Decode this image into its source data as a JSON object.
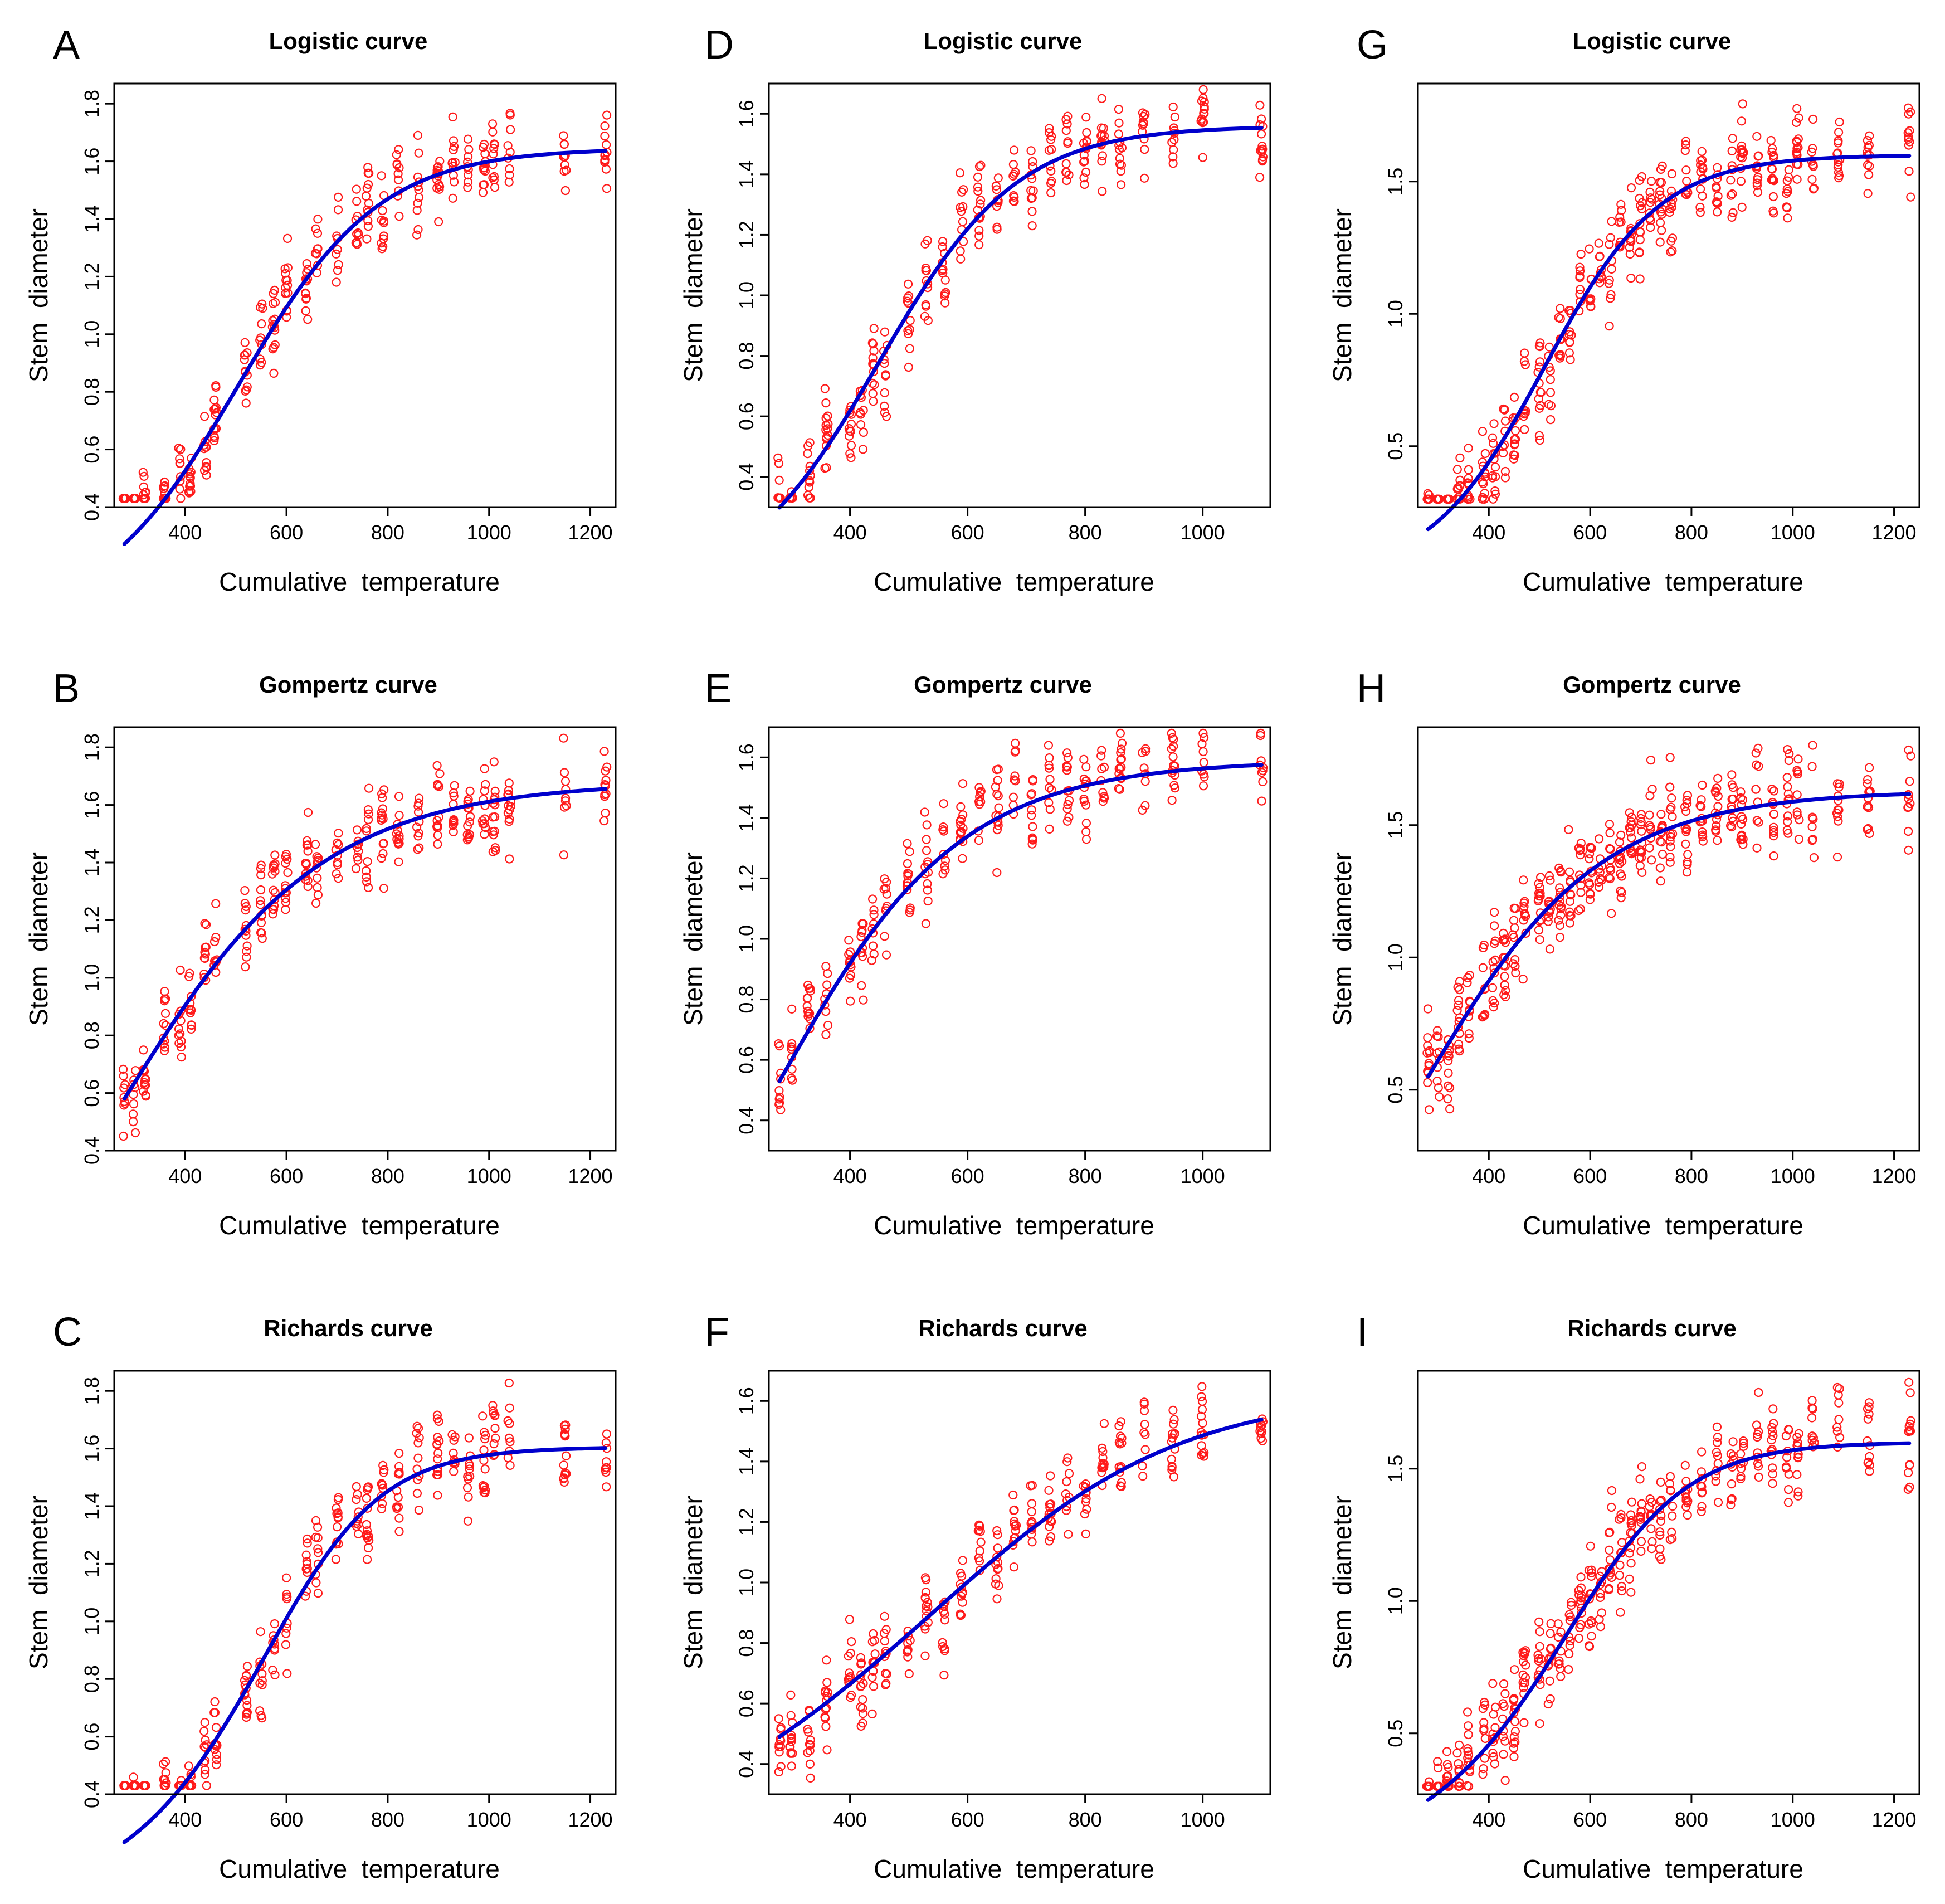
{
  "figure": {
    "colors": {
      "points": "#ff1a1a",
      "fit_line": "#0000cc",
      "frame": "#000000"
    }
  },
  "chart_data": [
    {
      "panel": "A",
      "type": "scatter",
      "title": "Logistic curve",
      "model": "logistic",
      "xlabel": "Cumulative  temperature",
      "ylabel": "Stem  diameter",
      "xlim": [
        260,
        1250
      ],
      "ylim": [
        0.4,
        1.87
      ],
      "xticks": [
        400,
        600,
        800,
        1000,
        1200
      ],
      "yticks": [
        0.4,
        0.6,
        0.8,
        1.0,
        1.2,
        1.4,
        1.6,
        1.8
      ],
      "ytick_format": 1,
      "x_levels": [
        280,
        300,
        320,
        360,
        390,
        410,
        440,
        460,
        520,
        550,
        575,
        600,
        640,
        660,
        700,
        740,
        760,
        790,
        820,
        860,
        900,
        930,
        960,
        990,
        1010,
        1040,
        1150,
        1230
      ],
      "fit": {
        "K": 1.645,
        "r": 0.0072,
        "x0": 428,
        "y0": 0.6,
        "x_from": 280,
        "x_to": 1230
      },
      "spread": 0.28
    },
    {
      "panel": "B",
      "type": "scatter",
      "title": "Gompertz curve",
      "model": "gompertz",
      "xlabel": "Cumulative  temperature",
      "ylabel": "Stem  diameter",
      "xlim": [
        260,
        1250
      ],
      "ylim": [
        0.4,
        1.87
      ],
      "xticks": [
        400,
        600,
        800,
        1000,
        1200
      ],
      "yticks": [
        0.4,
        0.6,
        0.8,
        1.0,
        1.2,
        1.4,
        1.6,
        1.8
      ],
      "ytick_format": 1,
      "x_levels": [
        280,
        300,
        320,
        360,
        390,
        410,
        440,
        460,
        520,
        550,
        575,
        600,
        640,
        660,
        700,
        740,
        760,
        790,
        820,
        860,
        900,
        930,
        960,
        990,
        1010,
        1040,
        1150,
        1230
      ],
      "fit": {
        "K": 1.68,
        "r": 0.0045,
        "x0": 280,
        "y0": 0.58,
        "x_from": 280,
        "x_to": 1230
      },
      "spread": 0.28
    },
    {
      "panel": "C",
      "type": "scatter",
      "title": "Richards curve",
      "model": "richards",
      "xlabel": "Cumulative  temperature",
      "ylabel": "Stem  diameter",
      "xlim": [
        260,
        1250
      ],
      "ylim": [
        0.4,
        1.87
      ],
      "xticks": [
        400,
        600,
        800,
        1000,
        1200
      ],
      "yticks": [
        0.4,
        0.6,
        0.8,
        1.0,
        1.2,
        1.4,
        1.6,
        1.8
      ],
      "ytick_format": 1,
      "x_levels": [
        280,
        300,
        320,
        360,
        390,
        410,
        440,
        460,
        520,
        550,
        575,
        600,
        640,
        660,
        700,
        740,
        760,
        790,
        820,
        860,
        900,
        930,
        960,
        990,
        1010,
        1040,
        1150,
        1230
      ],
      "fit": {
        "K": 1.605,
        "r": 0.0092,
        "x0": 482,
        "y0": 0.65,
        "x_from": 280,
        "x_to": 1230
      },
      "spread": 0.28
    },
    {
      "panel": "D",
      "type": "scatter",
      "title": "Logistic curve",
      "model": "logistic",
      "xlabel": "Cumulative  temperature",
      "ylabel": "Stem  diameter",
      "xlim": [
        262,
        1115
      ],
      "ylim": [
        0.3,
        1.7
      ],
      "xticks": [
        400,
        600,
        800,
        1000
      ],
      "yticks": [
        0.4,
        0.6,
        0.8,
        1.0,
        1.2,
        1.4,
        1.6
      ],
      "ytick_format": 1,
      "x_levels": [
        280,
        300,
        330,
        360,
        400,
        420,
        440,
        460,
        500,
        530,
        560,
        590,
        620,
        650,
        680,
        710,
        740,
        770,
        800,
        830,
        860,
        900,
        950,
        1000,
        1100
      ],
      "fit": {
        "K": 1.56,
        "r": 0.0085,
        "x0": 388,
        "y0": 0.58,
        "x_from": 280,
        "x_to": 1100
      },
      "spread": 0.26
    },
    {
      "panel": "E",
      "type": "scatter",
      "title": "Gompertz curve",
      "model": "gompertz",
      "xlabel": "Cumulative  temperature",
      "ylabel": "Stem  diameter",
      "xlim": [
        262,
        1115
      ],
      "ylim": [
        0.3,
        1.7
      ],
      "xticks": [
        400,
        600,
        800,
        1000
      ],
      "yticks": [
        0.4,
        0.6,
        0.8,
        1.0,
        1.2,
        1.4,
        1.6
      ],
      "ytick_format": 1,
      "x_levels": [
        280,
        300,
        330,
        360,
        400,
        420,
        440,
        460,
        500,
        530,
        560,
        590,
        620,
        650,
        680,
        710,
        740,
        770,
        800,
        830,
        860,
        900,
        950,
        1000,
        1100
      ],
      "fit": {
        "K": 1.59,
        "r": 0.0058,
        "x0": 280,
        "y0": 0.53,
        "x_from": 280,
        "x_to": 1100
      },
      "spread": 0.26
    },
    {
      "panel": "F",
      "type": "scatter",
      "title": "Richards curve",
      "model": "richards",
      "xlabel": "Cumulative  temperature",
      "ylabel": "Stem  diameter",
      "xlim": [
        262,
        1115
      ],
      "ylim": [
        0.3,
        1.7
      ],
      "xticks": [
        400,
        600,
        800,
        1000
      ],
      "yticks": [
        0.4,
        0.6,
        0.8,
        1.0,
        1.2,
        1.4,
        1.6
      ],
      "ytick_format": 1,
      "x_levels": [
        280,
        300,
        330,
        360,
        400,
        420,
        440,
        460,
        500,
        530,
        560,
        590,
        620,
        650,
        680,
        710,
        740,
        770,
        800,
        830,
        860,
        900,
        950,
        1000,
        1100
      ],
      "fit": {
        "K": 1.63,
        "r": 0.005,
        "x0": 280,
        "y0": 0.49,
        "x_from": 280,
        "x_to": 1100
      },
      "spread": 0.26
    },
    {
      "panel": "G",
      "type": "scatter",
      "title": "Logistic curve",
      "model": "logistic",
      "xlabel": "Cumulative  temperature",
      "ylabel": "Stem  diameter",
      "xlim": [
        260,
        1250
      ],
      "ylim": [
        0.27,
        1.87
      ],
      "xticks": [
        400,
        600,
        800,
        1000,
        1200
      ],
      "yticks": [
        0.5,
        1.0,
        1.5
      ],
      "ytick_format": 1,
      "x_levels": [
        280,
        300,
        320,
        340,
        360,
        390,
        410,
        430,
        450,
        470,
        500,
        520,
        540,
        560,
        580,
        600,
        620,
        640,
        660,
        680,
        700,
        720,
        740,
        760,
        790,
        820,
        850,
        880,
        900,
        930,
        960,
        990,
        1010,
        1040,
        1090,
        1150,
        1230
      ],
      "fit": {
        "K": 1.6,
        "r": 0.0088,
        "x0": 446,
        "y0": 0.58,
        "x_from": 280,
        "x_to": 1230
      },
      "spread": 0.32
    },
    {
      "panel": "H",
      "type": "scatter",
      "title": "Gompertz curve",
      "model": "gompertz",
      "xlabel": "Cumulative  temperature",
      "ylabel": "Stem  diameter",
      "xlim": [
        260,
        1250
      ],
      "ylim": [
        0.27,
        1.87
      ],
      "xticks": [
        400,
        600,
        800,
        1000,
        1200
      ],
      "yticks": [
        0.5,
        1.0,
        1.5
      ],
      "ytick_format": 1,
      "x_levels": [
        280,
        300,
        320,
        340,
        360,
        390,
        410,
        430,
        450,
        470,
        500,
        520,
        540,
        560,
        580,
        600,
        620,
        640,
        660,
        680,
        700,
        720,
        740,
        760,
        790,
        820,
        850,
        880,
        900,
        930,
        960,
        990,
        1010,
        1040,
        1090,
        1150,
        1230
      ],
      "fit": {
        "K": 1.63,
        "r": 0.0052,
        "x0": 280,
        "y0": 0.55,
        "x_from": 280,
        "x_to": 1230
      },
      "spread": 0.32
    },
    {
      "panel": "I",
      "type": "scatter",
      "title": "Richards curve",
      "model": "richards",
      "xlabel": "Cumulative  temperature",
      "ylabel": "Stem  diameter",
      "xlim": [
        260,
        1250
      ],
      "ylim": [
        0.27,
        1.87
      ],
      "xticks": [
        400,
        600,
        800,
        1000,
        1200
      ],
      "yticks": [
        0.5,
        1.0,
        1.5
      ],
      "ytick_format": 1,
      "x_levels": [
        280,
        300,
        320,
        340,
        360,
        390,
        410,
        430,
        450,
        470,
        500,
        520,
        540,
        560,
        580,
        600,
        620,
        640,
        660,
        680,
        700,
        720,
        740,
        760,
        790,
        820,
        850,
        880,
        900,
        930,
        960,
        990,
        1010,
        1040,
        1090,
        1150,
        1230
      ],
      "fit": {
        "K": 1.6,
        "r": 0.0089,
        "x0": 455,
        "y0": 0.59,
        "x_from": 280,
        "x_to": 1230
      },
      "spread": 0.32
    }
  ]
}
